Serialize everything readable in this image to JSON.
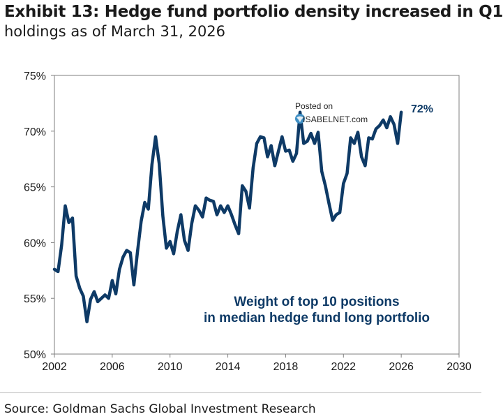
{
  "header": {
    "title": "Exhibit 13: Hedge fund portfolio density increased in Q1",
    "subtitle": "holdings as of March 31, 2026"
  },
  "annotation": {
    "line1": "Weight of top 10 positions",
    "line2": "in median hedge fund long portfolio"
  },
  "end_label": "72%",
  "watermark": {
    "line1": "Posted on",
    "line2": "ISABELNET.com"
  },
  "source": "Source: Goldman Sachs Global Investment Research",
  "colors": {
    "line": "#0e3a66",
    "axis": "#7f7f7f"
  },
  "chart_data": {
    "type": "line",
    "title": "Exhibit 13: Hedge fund portfolio density increased in Q1",
    "xlabel": "",
    "ylabel": "",
    "xlim": [
      2002,
      2030
    ],
    "ylim": [
      50,
      75
    ],
    "xticks": [
      2002,
      2006,
      2010,
      2014,
      2018,
      2022,
      2026,
      2030
    ],
    "yticks": [
      50,
      55,
      60,
      65,
      70,
      75
    ],
    "ytick_labels": [
      "50%",
      "55%",
      "60%",
      "65%",
      "70%",
      "75%"
    ],
    "grid": false,
    "series": [
      {
        "name": "Weight of top 10 positions in median hedge fund long portfolio",
        "x": [
          2002.0,
          2002.25,
          2002.5,
          2002.75,
          2003.0,
          2003.25,
          2003.5,
          2003.75,
          2004.0,
          2004.25,
          2004.5,
          2004.75,
          2005.0,
          2005.25,
          2005.5,
          2005.75,
          2006.0,
          2006.25,
          2006.5,
          2006.75,
          2007.0,
          2007.25,
          2007.5,
          2007.75,
          2008.0,
          2008.25,
          2008.5,
          2008.75,
          2009.0,
          2009.25,
          2009.5,
          2009.75,
          2010.0,
          2010.25,
          2010.5,
          2010.75,
          2011.0,
          2011.25,
          2011.5,
          2011.75,
          2012.0,
          2012.25,
          2012.5,
          2012.75,
          2013.0,
          2013.25,
          2013.5,
          2013.75,
          2014.0,
          2014.25,
          2014.5,
          2014.75,
          2015.0,
          2015.25,
          2015.5,
          2015.75,
          2016.0,
          2016.25,
          2016.5,
          2016.75,
          2017.0,
          2017.25,
          2017.5,
          2017.75,
          2018.0,
          2018.25,
          2018.5,
          2018.75,
          2019.0,
          2019.25,
          2019.5,
          2019.75,
          2020.0,
          2020.25,
          2020.5,
          2020.75,
          2021.0,
          2021.25,
          2021.5,
          2021.75,
          2022.0,
          2022.25,
          2022.5,
          2022.75,
          2023.0,
          2023.25,
          2023.5,
          2023.75,
          2024.0,
          2024.25,
          2024.5,
          2024.75,
          2025.0,
          2025.25,
          2025.5,
          2025.75,
          2026.0
        ],
        "values": [
          57.6,
          57.4,
          59.8,
          63.3,
          61.8,
          62.2,
          57.0,
          55.9,
          55.2,
          52.9,
          54.9,
          55.6,
          54.7,
          55.0,
          55.3,
          55.0,
          56.6,
          55.4,
          57.6,
          58.7,
          59.3,
          59.1,
          56.2,
          59.2,
          61.9,
          63.6,
          63.0,
          67.0,
          69.5,
          67.1,
          62.4,
          59.5,
          60.1,
          59.0,
          61.0,
          62.5,
          60.2,
          59.3,
          61.7,
          63.3,
          62.9,
          62.3,
          64.0,
          63.8,
          63.7,
          62.5,
          63.3,
          62.7,
          63.3,
          62.5,
          61.6,
          60.8,
          65.1,
          64.6,
          63.1,
          66.7,
          68.9,
          69.5,
          69.4,
          67.7,
          68.7,
          66.9,
          68.2,
          69.5,
          68.2,
          68.3,
          67.3,
          68.0,
          71.7,
          68.9,
          69.1,
          69.8,
          68.9,
          69.9,
          66.4,
          65.1,
          63.5,
          62.0,
          62.5,
          62.7,
          65.3,
          66.2,
          69.4,
          68.9,
          69.9,
          67.7,
          66.9,
          69.4,
          69.3,
          70.2,
          70.5,
          71.0,
          70.3,
          71.3,
          70.6,
          68.9,
          71.7
        ]
      }
    ]
  }
}
